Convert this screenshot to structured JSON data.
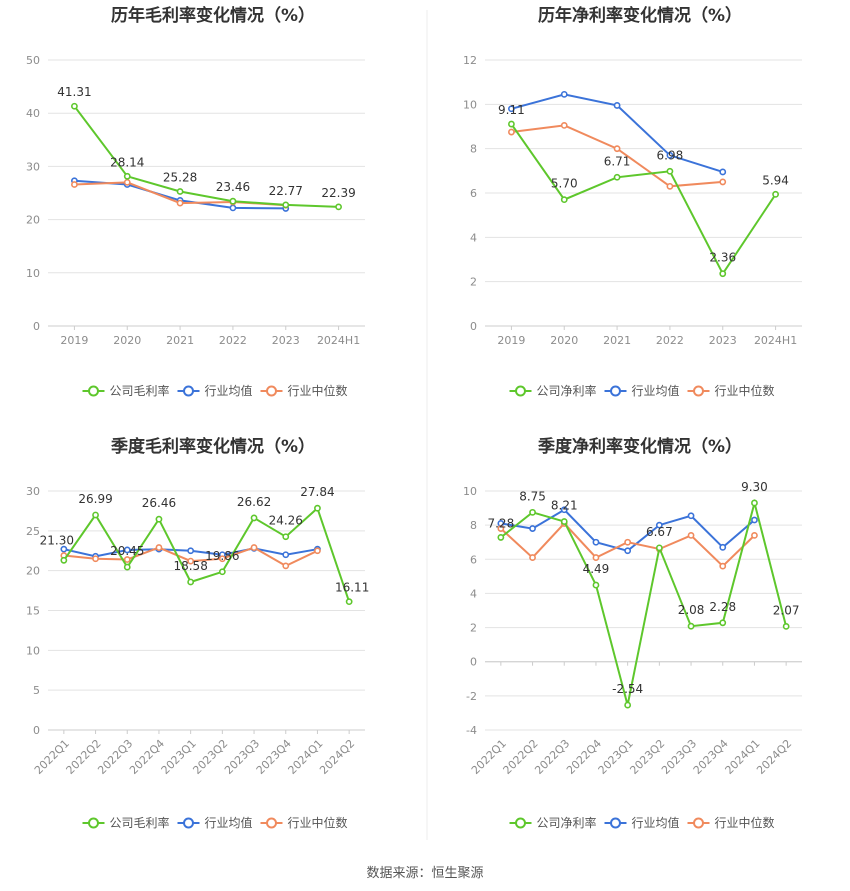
{
  "colors": {
    "company": "#5ec72c",
    "industry_avg": "#3b73d9",
    "industry_median": "#f08a5d",
    "grid": "#e3e3e3",
    "axis_text": "#8c8c8c",
    "divider": "#eeeeee"
  },
  "footer": {
    "source": "数据来源：恒生聚源"
  },
  "chart_data": [
    {
      "type": "line",
      "title": "历年毛利率变化情况（%）",
      "categories": [
        "2019",
        "2020",
        "2021",
        "2022",
        "2023",
        "2024H1"
      ],
      "ylim": [
        0,
        50
      ],
      "yticks": [
        0,
        10,
        20,
        30,
        40,
        50
      ],
      "rotate_x_labels": false,
      "grid": true,
      "legend_position": "bottom",
      "series": [
        {
          "name": "公司毛利率",
          "role": "company",
          "values": [
            41.31,
            28.14,
            25.28,
            23.46,
            22.77,
            22.39
          ],
          "labels": [
            "41.31",
            "28.14",
            "25.28",
            "23.46",
            "22.77",
            "22.39"
          ]
        },
        {
          "name": "行业均值",
          "role": "industry_avg",
          "values": [
            27.3,
            26.6,
            23.6,
            22.2,
            22.1,
            null
          ]
        },
        {
          "name": "行业中位数",
          "role": "industry_median",
          "values": [
            26.6,
            27.0,
            23.1,
            23.3,
            22.7,
            null
          ]
        }
      ]
    },
    {
      "type": "line",
      "title": "历年净利率变化情况（%）",
      "categories": [
        "2019",
        "2020",
        "2021",
        "2022",
        "2023",
        "2024H1"
      ],
      "ylim": [
        0,
        12
      ],
      "yticks": [
        0,
        2,
        4,
        6,
        8,
        10,
        12
      ],
      "rotate_x_labels": false,
      "grid": true,
      "legend_position": "bottom",
      "series": [
        {
          "name": "公司净利率",
          "role": "company",
          "values": [
            9.11,
            5.7,
            6.71,
            6.98,
            2.36,
            5.94
          ],
          "labels": [
            "9.11",
            "5.70",
            "6.71",
            "6.98",
            "2.36",
            "5.94"
          ]
        },
        {
          "name": "行业均值",
          "role": "industry_avg",
          "values": [
            9.8,
            10.45,
            9.95,
            7.7,
            6.95,
            null
          ]
        },
        {
          "name": "行业中位数",
          "role": "industry_median",
          "values": [
            8.75,
            9.05,
            8.0,
            6.3,
            6.5,
            null
          ]
        }
      ]
    },
    {
      "type": "line",
      "title": "季度毛利率变化情况（%）",
      "categories": [
        "2022Q1",
        "2022Q2",
        "2022Q3",
        "2022Q4",
        "2023Q1",
        "2023Q2",
        "2023Q3",
        "2023Q4",
        "2024Q1",
        "2024Q2"
      ],
      "ylim": [
        0,
        30
      ],
      "yticks": [
        0,
        5,
        10,
        15,
        20,
        25,
        30
      ],
      "rotate_x_labels": true,
      "grid": true,
      "legend_position": "bottom",
      "series": [
        {
          "name": "公司毛利率",
          "role": "company",
          "values": [
            21.3,
            26.99,
            20.45,
            26.46,
            18.58,
            19.86,
            26.62,
            24.26,
            27.84,
            16.11
          ],
          "labels": [
            "21.30",
            "26.99",
            "20.45",
            "26.46",
            "18.58",
            "19.86",
            "26.62",
            "24.26",
            "27.84",
            "16.11"
          ]
        },
        {
          "name": "行业均值",
          "role": "industry_avg",
          "values": [
            22.7,
            21.8,
            22.6,
            22.7,
            22.5,
            22.0,
            22.8,
            22.0,
            22.7,
            null
          ]
        },
        {
          "name": "行业中位数",
          "role": "industry_median",
          "values": [
            21.9,
            21.5,
            21.4,
            22.9,
            21.2,
            21.5,
            22.9,
            20.6,
            22.5,
            null
          ]
        }
      ]
    },
    {
      "type": "line",
      "title": "季度净利率变化情况（%）",
      "categories": [
        "2022Q1",
        "2022Q2",
        "2022Q3",
        "2022Q4",
        "2023Q1",
        "2023Q2",
        "2023Q3",
        "2023Q4",
        "2024Q1",
        "2024Q2"
      ],
      "ylim": [
        -4,
        10
      ],
      "yticks": [
        -4,
        -2,
        0,
        2,
        4,
        6,
        8,
        10
      ],
      "rotate_x_labels": true,
      "grid": true,
      "legend_position": "bottom",
      "series": [
        {
          "name": "公司净利率",
          "role": "company",
          "values": [
            7.28,
            8.75,
            8.21,
            4.49,
            -2.54,
            6.67,
            2.08,
            2.28,
            9.3,
            2.07
          ],
          "labels": [
            "7.28",
            "8.75",
            "8.21",
            "4.49",
            "-2.54",
            "6.67",
            "2.08",
            "2.28",
            "9.30",
            "2.07"
          ]
        },
        {
          "name": "行业均值",
          "role": "industry_avg",
          "values": [
            8.1,
            7.8,
            8.9,
            7.0,
            6.5,
            8.0,
            8.55,
            6.7,
            8.3,
            null
          ]
        },
        {
          "name": "行业中位数",
          "role": "industry_median",
          "values": [
            7.8,
            6.1,
            8.1,
            6.1,
            7.0,
            6.6,
            7.4,
            5.6,
            7.4,
            null
          ]
        }
      ]
    }
  ]
}
